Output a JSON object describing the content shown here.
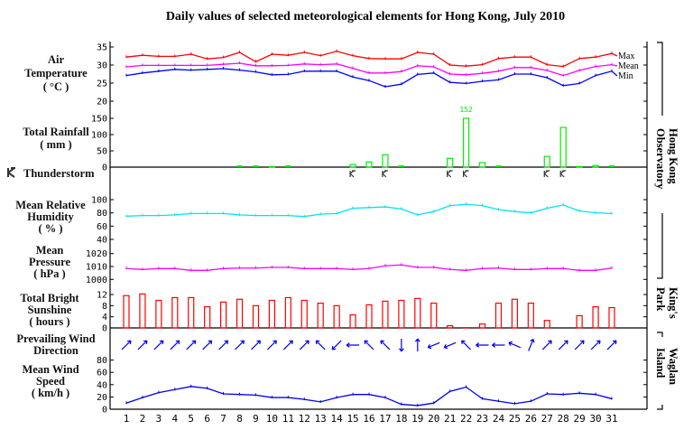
{
  "chart_data": {
    "type": "multi-panel",
    "title": "Daily values of selected meteorological elements for Hong Kong, July 2010",
    "days": [
      1,
      2,
      3,
      4,
      5,
      6,
      7,
      8,
      9,
      10,
      11,
      12,
      13,
      14,
      15,
      16,
      17,
      18,
      19,
      20,
      21,
      22,
      23,
      24,
      25,
      26,
      27,
      28,
      29,
      30,
      31
    ],
    "stations": {
      "top": "Hong Kong Observatory",
      "middle": "King's Park",
      "bottom": "Waglan Island"
    },
    "colors": {
      "max": "#ff0000",
      "mean": "#ff00ff",
      "min": "#0000ff",
      "rain": "#00ee00",
      "humidity": "#00e5ee",
      "pressure": "#ff00ff",
      "sunshine": "#ff0000",
      "wind": "#0000ee"
    },
    "panels": {
      "temperature": {
        "label": [
          "Air",
          "Temperature",
          "( °C )"
        ],
        "ylim": [
          20,
          35
        ],
        "ticks": [
          "35",
          "30",
          "25",
          "20"
        ],
        "series": [
          {
            "name": "Max",
            "values": [
              32.2,
              32.7,
              32.4,
              32.4,
              33.0,
              31.7,
              32.1,
              33.5,
              30.9,
              33.0,
              32.7,
              33.5,
              32.6,
              33.8,
              32.6,
              31.8,
              31.7,
              31.7,
              33.5,
              33.0,
              30.0,
              29.7,
              30.1,
              31.8,
              32.2,
              32.2,
              30.1,
              29.6,
              31.8,
              32.2,
              33.2
            ]
          },
          {
            "name": "Mean",
            "values": [
              29.5,
              29.9,
              29.9,
              29.9,
              29.9,
              29.9,
              30.2,
              30.5,
              29.8,
              29.8,
              29.9,
              30.3,
              30.1,
              30.3,
              29.1,
              27.8,
              27.8,
              28.2,
              29.8,
              29.5,
              27.5,
              27.3,
              27.7,
              28.3,
              29.3,
              29.3,
              28.5,
              27.1,
              28.5,
              29.6,
              30.1
            ]
          },
          {
            "name": "Min",
            "values": [
              27.1,
              27.8,
              28.3,
              28.8,
              28.6,
              28.8,
              29.0,
              28.6,
              28.1,
              27.3,
              27.4,
              28.3,
              28.3,
              28.3,
              26.7,
              25.7,
              24.0,
              24.7,
              27.4,
              27.8,
              25.2,
              24.9,
              25.5,
              25.9,
              27.5,
              27.5,
              26.5,
              24.3,
              24.9,
              27.1,
              28.3
            ]
          }
        ]
      },
      "rainfall": {
        "label": [
          "Total Rainfall",
          "( mm )"
        ],
        "ylim": [
          0,
          150
        ],
        "ticks": [
          "150",
          "100",
          "50",
          "0"
        ],
        "values": [
          0,
          0,
          0,
          0,
          0,
          0,
          0,
          0.1,
          0.1,
          2,
          0.1,
          0,
          0,
          0,
          8,
          16,
          38,
          0.1,
          0,
          0,
          27,
          152,
          14,
          0.1,
          0,
          0,
          33,
          122,
          2,
          5,
          0.1
        ],
        "overflow_label": "152"
      },
      "thunderstorm": {
        "label": "Thunderstorm",
        "days": [
          15,
          17,
          21,
          22,
          27,
          28
        ]
      },
      "humidity": {
        "label": [
          "Mean Relative",
          "Humidity",
          "( % )"
        ],
        "ylim": [
          40,
          100
        ],
        "ticks": [
          "100",
          "80",
          "60",
          "40"
        ],
        "values": [
          75,
          76,
          76,
          77,
          79,
          79,
          79,
          77,
          76,
          76,
          76,
          74.5,
          78,
          79,
          87,
          88,
          89,
          86,
          77,
          82,
          91,
          93,
          91,
          85,
          82,
          80,
          87,
          92,
          83,
          80,
          79
        ]
      },
      "pressure": {
        "label": [
          "Mean",
          "Pressure",
          "( hPa )"
        ],
        "ylim": [
          1000,
          1020
        ],
        "ticks": [
          "1020",
          "1010",
          "1000"
        ],
        "values": [
          1008.4,
          1007.7,
          1008.4,
          1008.4,
          1007.0,
          1007.0,
          1008.4,
          1008.8,
          1008.8,
          1009.3,
          1009.3,
          1008.4,
          1008.4,
          1008.4,
          1007.7,
          1008.4,
          1010.5,
          1011.2,
          1009.3,
          1009.3,
          1007.7,
          1007.0,
          1008.4,
          1008.8,
          1007.7,
          1007.7,
          1008.4,
          1008.4,
          1007.0,
          1007.0,
          1008.8
        ]
      },
      "sunshine": {
        "label": [
          "Total Bright",
          "Sunshine",
          "( hours )"
        ],
        "ylim": [
          0,
          12
        ],
        "ticks": [
          "12",
          "8",
          "4",
          "0"
        ],
        "values": [
          11.6,
          12.2,
          9.9,
          10.9,
          10.9,
          7.6,
          9.3,
          10.3,
          8.0,
          9.9,
          10.9,
          9.9,
          8.9,
          8.0,
          4.7,
          8.3,
          9.6,
          9.9,
          10.6,
          8.9,
          0.8,
          0.1,
          1.4,
          8.9,
          10.3,
          8.9,
          2.7,
          0,
          4.4,
          7.6,
          7.3
        ]
      },
      "wind_direction": {
        "label": [
          "Prevailing Wind",
          "Direction"
        ],
        "values": [
          "SW",
          "SW",
          "SW",
          "SW",
          "SW",
          "SW",
          "SW",
          "SW",
          "SW",
          "SW",
          "SW",
          "SW",
          "SE",
          "NE",
          "E",
          "SE",
          "SE",
          "N",
          "S",
          "ENE",
          "ENE",
          "SE",
          "E",
          "E",
          "ESE",
          "SSW",
          "SW",
          "SW",
          "SW",
          "SW",
          "SW"
        ]
      },
      "wind_speed": {
        "label": [
          "Mean Wind",
          "Speed",
          "( km/h )"
        ],
        "ylim": [
          0,
          80
        ],
        "ticks": [
          "80",
          "60",
          "40",
          "20",
          "0"
        ],
        "values": [
          10,
          19,
          27,
          32,
          37,
          34,
          25,
          24,
          23,
          19,
          19,
          16,
          12,
          19,
          24,
          24,
          19,
          8,
          6,
          10,
          29,
          36,
          17,
          13,
          9,
          13,
          25,
          24,
          26,
          24,
          17
        ]
      }
    },
    "legend": [
      "Max",
      "Mean",
      "Min"
    ]
  }
}
